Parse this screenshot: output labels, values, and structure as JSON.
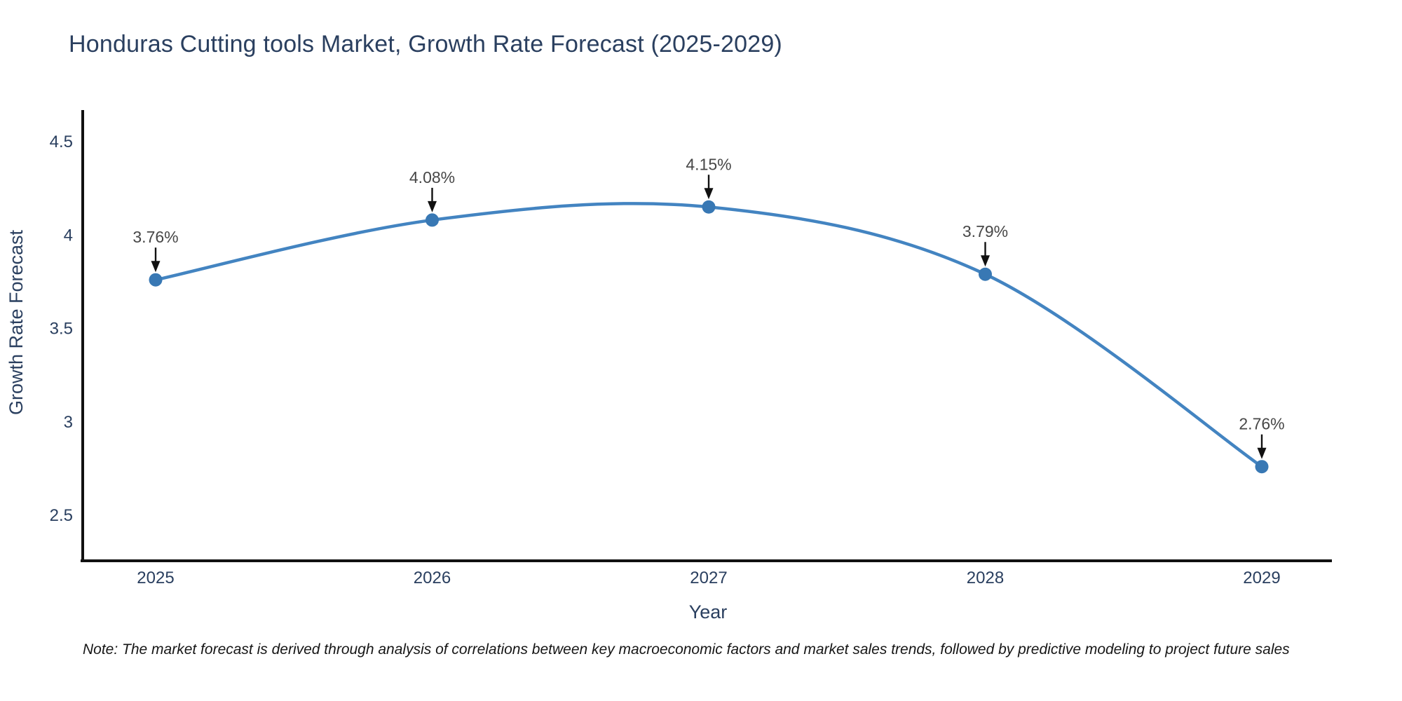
{
  "title": "Honduras Cutting tools Market, Growth Rate Forecast (2025-2029)",
  "note": "Note: The market forecast is derived through analysis of correlations between key macroeconomic factors and market sales trends, followed by predictive modeling to project future sales",
  "colors": {
    "line": "#4384c1",
    "marker": "#3878b4",
    "axis_line": "#111111",
    "arrow": "#111111",
    "title_text": "#2a3f5f",
    "axis_text": "#2a3f5f",
    "annotation_text": "#474747",
    "background": "#ffffff"
  },
  "chart_data": {
    "type": "line",
    "title": "Honduras Cutting tools Market, Growth Rate Forecast (2025-2029)",
    "xlabel": "Year",
    "ylabel": "Growth Rate Forecast",
    "categories": [
      "2025",
      "2026",
      "2027",
      "2028",
      "2029"
    ],
    "values": [
      3.76,
      4.08,
      4.15,
      3.79,
      2.76
    ],
    "point_labels": [
      "3.76%",
      "4.08%",
      "4.15%",
      "3.79%",
      "2.76%"
    ],
    "y_ticks": [
      {
        "label": "4.5",
        "value": 4.5
      },
      {
        "label": "4",
        "value": 4.0
      },
      {
        "label": "3.5",
        "value": 3.5
      },
      {
        "label": "3",
        "value": 3.0
      },
      {
        "label": "2.5",
        "value": 2.5
      }
    ],
    "ylim": [
      2.25,
      4.66
    ],
    "grid": false,
    "legend": "none",
    "line_shape": "spline",
    "markers": true,
    "annotation_arrows": true
  }
}
